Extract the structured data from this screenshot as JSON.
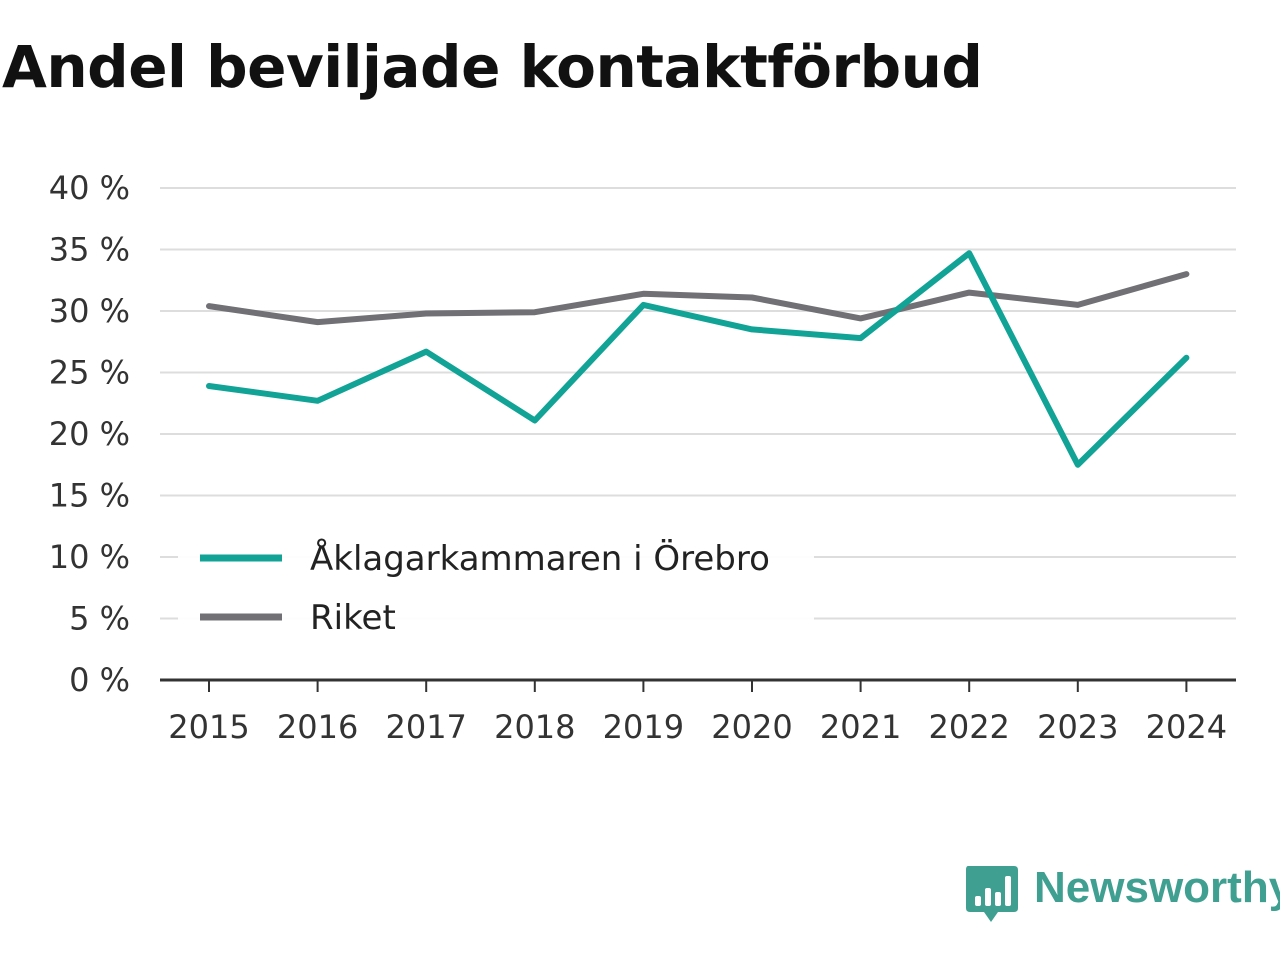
{
  "chart_data": {
    "type": "line",
    "title": "Andel beviljade kontaktförbud",
    "categories": [
      "2015",
      "2016",
      "2017",
      "2018",
      "2019",
      "2020",
      "2021",
      "2022",
      "2023",
      "2024"
    ],
    "y_ticks": [
      "0 %",
      "5 %",
      "10 %",
      "15 %",
      "20 %",
      "25 %",
      "30 %",
      "35 %",
      "40 %"
    ],
    "ylim": [
      0,
      40
    ],
    "grid": true,
    "legend_position": "lower-left",
    "series": [
      {
        "name": "Åklagarkammaren i Örebro",
        "color": "#12a397",
        "values": [
          23.9,
          22.7,
          26.7,
          21.1,
          30.5,
          28.5,
          27.8,
          34.7,
          17.5,
          26.2
        ]
      },
      {
        "name": "Riket",
        "color": "#707075",
        "values": [
          30.4,
          29.1,
          29.8,
          29.9,
          31.4,
          31.1,
          29.4,
          31.5,
          30.5,
          33.0
        ]
      }
    ]
  },
  "brand": {
    "name": "Newsworthy",
    "color": "#3f9f91",
    "icon": "newsworthy-logo-icon"
  }
}
